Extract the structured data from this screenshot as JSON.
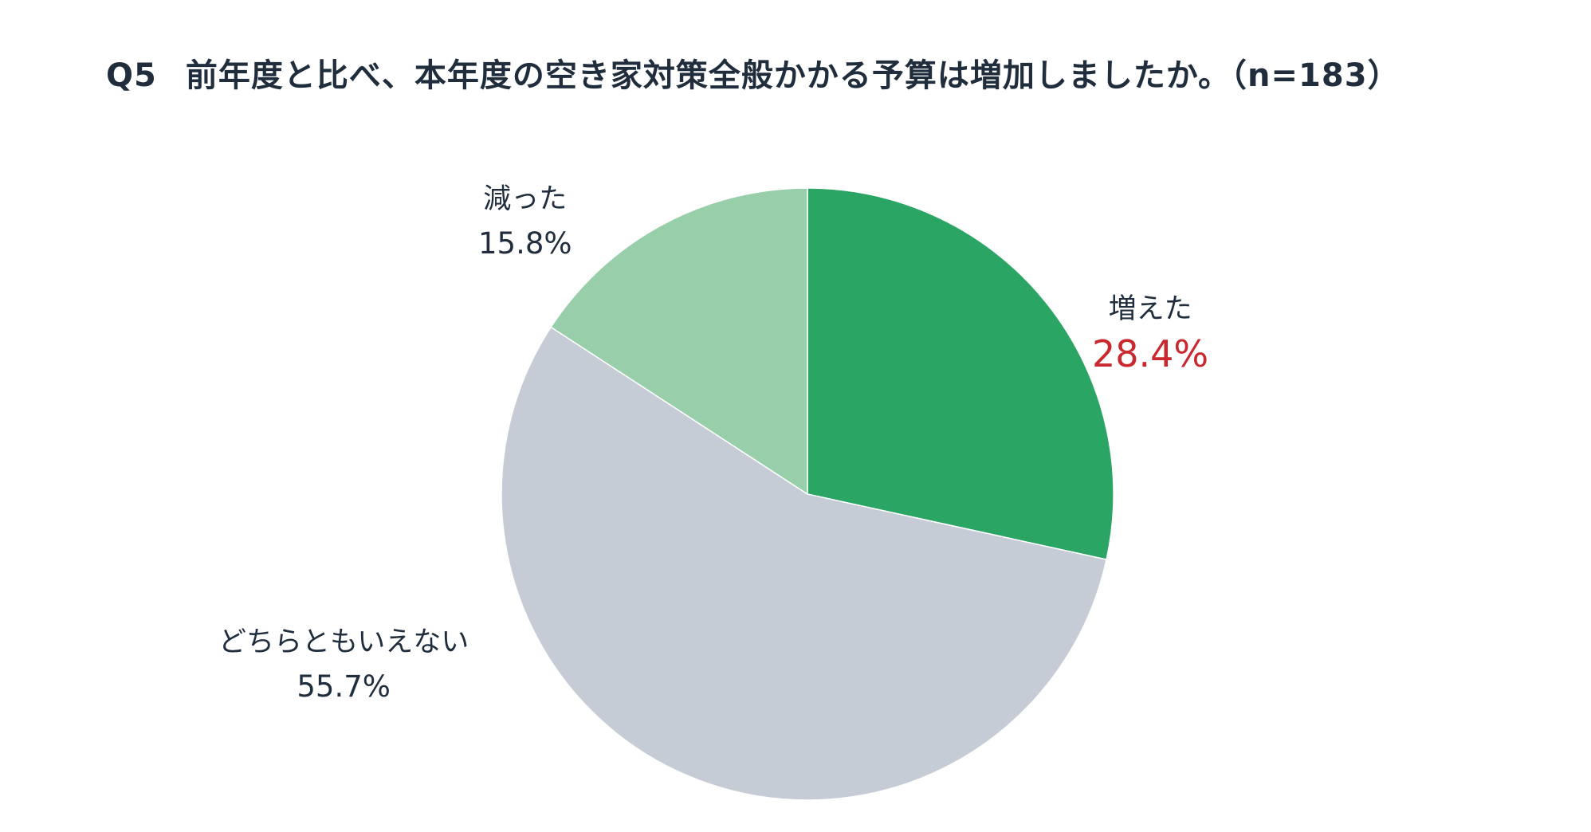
{
  "title": {
    "question_no": "Q5",
    "text": "前年度と比べ、本年度の空き家対策全般かかる予算は増加しましたか。（n=183）"
  },
  "colors": {
    "increased": "#2aa564",
    "neutral": "#c5ccd6",
    "decreased": "#98cfaa",
    "highlight_text": "#c9282f"
  },
  "chart_data": {
    "type": "pie",
    "title": "Q5　前年度と比べ、本年度の空き家対策全般かかる予算は増加しましたか。（n=183）",
    "start": "12 o'clock",
    "direction": "clockwise",
    "slices": [
      {
        "label": "増えた",
        "value": 28.4,
        "display": "28.4%",
        "color": "#2aa564",
        "highlight": true
      },
      {
        "label": "どちらともいえない",
        "value": 55.7,
        "display": "55.7%",
        "color": "#c5ccd6",
        "highlight": false
      },
      {
        "label": "減った",
        "value": 15.8,
        "display": "15.8%",
        "color": "#98cfaa",
        "highlight": false
      }
    ]
  }
}
